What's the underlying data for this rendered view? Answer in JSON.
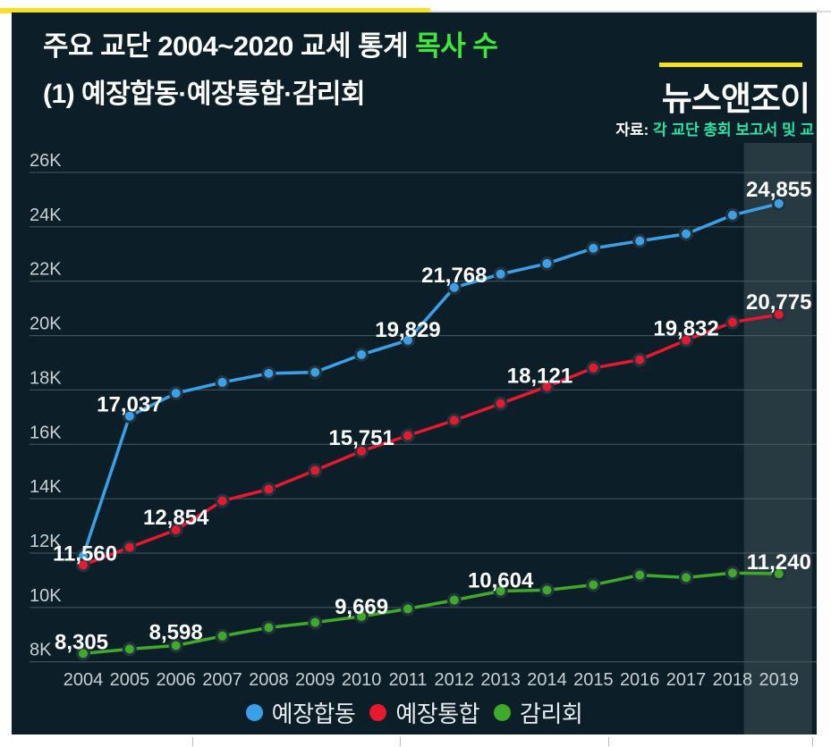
{
  "header": {
    "title_main": "주요 교단 2004~2020 교세 통계 ",
    "title_highlight": "목사 수",
    "subtitle": "(1) 예장합동·예장통합·감리회",
    "logo": "뉴스앤조이",
    "source_label": "자료: ",
    "source_text": "각 교단 총회 보고서 및 교"
  },
  "colors": {
    "slide_bg": "#0c1f28",
    "title_highlight": "#3de93d",
    "source_text": "#2ce3a5",
    "accent_yellow": "#f6e01f",
    "gridline": "#4b5a62",
    "axis_text": "#c9d0d4",
    "data_label": "#ffffff",
    "highlight_band": "rgba(221,232,238,0.13)",
    "dot_ring": "#22333d"
  },
  "chart_data": {
    "type": "line",
    "title": "주요 교단 2004~2020 교세 통계 목사 수 (1) 예장합동·예장통합·감리회",
    "x": [
      2004,
      2005,
      2006,
      2007,
      2008,
      2009,
      2010,
      2011,
      2012,
      2013,
      2014,
      2015,
      2016,
      2017,
      2018,
      2019
    ],
    "ylim": [
      8000,
      26000
    ],
    "grid": true,
    "legend_position": "bottom",
    "highlight_year": 2019,
    "yticks": [
      {
        "value": 26000,
        "label": "26K"
      },
      {
        "value": 24000,
        "label": "24K"
      },
      {
        "value": 22000,
        "label": "22K"
      },
      {
        "value": 20000,
        "label": "20K"
      },
      {
        "value": 18000,
        "label": "18K"
      },
      {
        "value": 16000,
        "label": "16K"
      },
      {
        "value": 14000,
        "label": "14K"
      },
      {
        "value": 12000,
        "label": "12K"
      },
      {
        "value": 10000,
        "label": "10K"
      },
      {
        "value": 8000,
        "label": "8K"
      }
    ],
    "series": [
      {
        "name": "예장합동",
        "color": "#3aa1e8",
        "values": [
          11900,
          17037,
          17880,
          18280,
          18610,
          18650,
          19300,
          19829,
          21768,
          22260,
          22650,
          23210,
          23480,
          23740,
          24430,
          24855
        ],
        "labels": [
          {
            "year": 2005,
            "text": "17,037",
            "dy": 4
          },
          {
            "year": 2011,
            "text": "19,829",
            "dy": 5
          },
          {
            "year": 2012,
            "text": "21,768",
            "dy": 3
          },
          {
            "year": 2019,
            "text": "24,855",
            "dy": 1
          }
        ]
      },
      {
        "name": "예장통합",
        "color": "#e6192e",
        "values": [
          11560,
          12210,
          12854,
          13920,
          14350,
          15040,
          15751,
          16320,
          16880,
          17500,
          18121,
          18810,
          19110,
          19832,
          20490,
          20775
        ],
        "labels": [
          {
            "year": 2004,
            "text": "11,560",
            "dx": 2,
            "dy": 4
          },
          {
            "year": 2006,
            "text": "12,854",
            "dy": 3
          },
          {
            "year": 2010,
            "text": "15,751",
            "dy": 2
          },
          {
            "year": 2014,
            "text": "18,121",
            "dx": -8,
            "dy": 5
          },
          {
            "year": 2017,
            "text": "19,832",
            "dy": 4
          },
          {
            "year": 2019,
            "text": "20,775",
            "dy": 3
          }
        ]
      },
      {
        "name": "감리회",
        "color": "#3fa929",
        "values": [
          8305,
          8470,
          8598,
          8950,
          9260,
          9450,
          9669,
          9950,
          10270,
          10604,
          10640,
          10830,
          11190,
          11100,
          11270,
          11240
        ],
        "labels": [
          {
            "year": 2004,
            "text": "8,305",
            "dx": -2,
            "dy": 4
          },
          {
            "year": 2006,
            "text": "8,598",
            "dy": 2
          },
          {
            "year": 2010,
            "text": "9,669",
            "dy": 6
          },
          {
            "year": 2013,
            "text": "10,604",
            "dy": 5
          },
          {
            "year": 2019,
            "text": "11,240",
            "dy": 4
          }
        ]
      }
    ]
  }
}
